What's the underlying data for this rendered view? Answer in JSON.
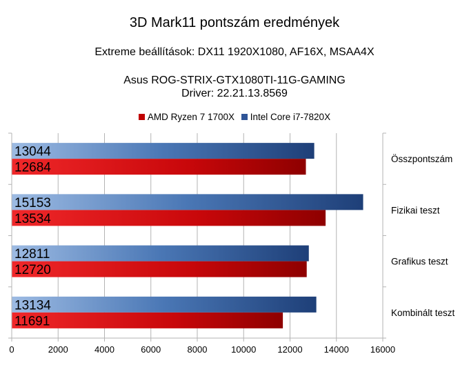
{
  "chart_data": {
    "type": "bar",
    "orientation": "horizontal",
    "title": "3D Mark11 pontszám eredmények",
    "subtitle": "Extreme beállítások: DX11 1920X1080, AF16X, MSAA4X",
    "subtitle2_line1": "Asus ROG-STRIX-GTX1080TI-11G-GAMING",
    "subtitle2_line2": "Driver: 22.21.13.8569",
    "categories": [
      "Összpontszám",
      "Fizikai teszt",
      "Grafikus teszt",
      "Kombinált teszt"
    ],
    "series": [
      {
        "name": "AMD Ryzen 7 1700X",
        "values": [
          12684,
          13534,
          12720,
          11691
        ],
        "color": "#c00000"
      },
      {
        "name": "Intel Core i7-7820X",
        "values": [
          13044,
          15153,
          12811,
          13134
        ],
        "color": "#2f5597"
      }
    ],
    "xlim": [
      0,
      16000
    ],
    "xticks": [
      "0",
      "2000",
      "4000",
      "6000",
      "8000",
      "10000",
      "12000",
      "14000",
      "16000"
    ],
    "grid": true,
    "legend_position": "top",
    "category_axis_position": "right",
    "data_labels": true
  }
}
